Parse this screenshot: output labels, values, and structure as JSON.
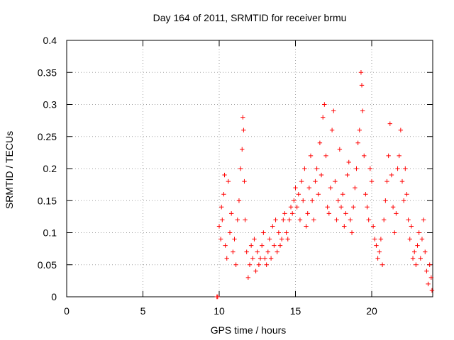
{
  "chart_data": {
    "type": "scatter",
    "title": "Day 164 of 2011, SRMTID for receiver brmu",
    "xlabel": "GPS time / hours",
    "ylabel": "SRMTID / TECUs",
    "xlim": [
      0,
      24
    ],
    "ylim": [
      0,
      0.4
    ],
    "x_ticks": [
      0,
      5,
      10,
      15,
      20
    ],
    "x_tick_labels": [
      "0",
      "5",
      "10",
      "15",
      "20"
    ],
    "y_ticks": [
      0,
      0.05,
      0.1,
      0.15,
      0.2,
      0.25,
      0.3,
      0.35,
      0.4
    ],
    "y_tick_labels": [
      "0",
      "0.05",
      "0.1",
      "0.15",
      "0.2",
      "0.25",
      "0.3",
      "0.35",
      "0.4"
    ],
    "grid": true,
    "marker": "+",
    "color": "#ff0000",
    "series": [
      {
        "name": "SRMTID",
        "points": [
          [
            9.85,
            0.0
          ],
          [
            9.9,
            0.0
          ],
          [
            10.0,
            0.11
          ],
          [
            10.1,
            0.09
          ],
          [
            10.15,
            0.14
          ],
          [
            10.2,
            0.12
          ],
          [
            10.3,
            0.16
          ],
          [
            10.35,
            0.19
          ],
          [
            10.4,
            0.08
          ],
          [
            10.5,
            0.06
          ],
          [
            10.6,
            0.18
          ],
          [
            10.7,
            0.1
          ],
          [
            10.8,
            0.13
          ],
          [
            10.9,
            0.07
          ],
          [
            11.0,
            0.09
          ],
          [
            11.1,
            0.05
          ],
          [
            11.2,
            0.12
          ],
          [
            11.3,
            0.15
          ],
          [
            11.4,
            0.2
          ],
          [
            11.5,
            0.23
          ],
          [
            11.55,
            0.28
          ],
          [
            11.6,
            0.26
          ],
          [
            11.65,
            0.18
          ],
          [
            11.7,
            0.12
          ],
          [
            11.8,
            0.07
          ],
          [
            11.9,
            0.03
          ],
          [
            12.0,
            0.05
          ],
          [
            12.1,
            0.08
          ],
          [
            12.2,
            0.06
          ],
          [
            12.3,
            0.09
          ],
          [
            12.4,
            0.04
          ],
          [
            12.5,
            0.07
          ],
          [
            12.6,
            0.05
          ],
          [
            12.7,
            0.06
          ],
          [
            12.8,
            0.08
          ],
          [
            12.9,
            0.1
          ],
          [
            13.0,
            0.06
          ],
          [
            13.1,
            0.05
          ],
          [
            13.2,
            0.07
          ],
          [
            13.3,
            0.09
          ],
          [
            13.4,
            0.06
          ],
          [
            13.5,
            0.11
          ],
          [
            13.6,
            0.08
          ],
          [
            13.7,
            0.12
          ],
          [
            13.8,
            0.07
          ],
          [
            13.9,
            0.1
          ],
          [
            14.0,
            0.08
          ],
          [
            14.1,
            0.09
          ],
          [
            14.2,
            0.12
          ],
          [
            14.3,
            0.13
          ],
          [
            14.4,
            0.1
          ],
          [
            14.5,
            0.09
          ],
          [
            14.6,
            0.12
          ],
          [
            14.7,
            0.14
          ],
          [
            14.8,
            0.13
          ],
          [
            14.9,
            0.15
          ],
          [
            15.0,
            0.17
          ],
          [
            15.1,
            0.14
          ],
          [
            15.2,
            0.16
          ],
          [
            15.3,
            0.12
          ],
          [
            15.4,
            0.18
          ],
          [
            15.5,
            0.15
          ],
          [
            15.6,
            0.2
          ],
          [
            15.7,
            0.11
          ],
          [
            15.8,
            0.13
          ],
          [
            15.9,
            0.17
          ],
          [
            16.0,
            0.22
          ],
          [
            16.1,
            0.15
          ],
          [
            16.2,
            0.12
          ],
          [
            16.3,
            0.18
          ],
          [
            16.4,
            0.2
          ],
          [
            16.5,
            0.16
          ],
          [
            16.6,
            0.24
          ],
          [
            16.7,
            0.19
          ],
          [
            16.8,
            0.28
          ],
          [
            16.9,
            0.3
          ],
          [
            17.0,
            0.22
          ],
          [
            17.1,
            0.14
          ],
          [
            17.2,
            0.13
          ],
          [
            17.3,
            0.17
          ],
          [
            17.4,
            0.26
          ],
          [
            17.5,
            0.29
          ],
          [
            17.6,
            0.18
          ],
          [
            17.7,
            0.12
          ],
          [
            17.8,
            0.15
          ],
          [
            17.9,
            0.23
          ],
          [
            18.0,
            0.14
          ],
          [
            18.1,
            0.16
          ],
          [
            18.2,
            0.11
          ],
          [
            18.3,
            0.13
          ],
          [
            18.4,
            0.19
          ],
          [
            18.5,
            0.21
          ],
          [
            18.6,
            0.12
          ],
          [
            18.7,
            0.1
          ],
          [
            18.8,
            0.14
          ],
          [
            18.9,
            0.17
          ],
          [
            19.0,
            0.2
          ],
          [
            19.1,
            0.24
          ],
          [
            19.2,
            0.26
          ],
          [
            19.3,
            0.35
          ],
          [
            19.35,
            0.33
          ],
          [
            19.4,
            0.29
          ],
          [
            19.5,
            0.22
          ],
          [
            19.6,
            0.16
          ],
          [
            19.7,
            0.14
          ],
          [
            19.8,
            0.12
          ],
          [
            19.9,
            0.2
          ],
          [
            20.0,
            0.18
          ],
          [
            20.1,
            0.11
          ],
          [
            20.2,
            0.09
          ],
          [
            20.3,
            0.08
          ],
          [
            20.4,
            0.06
          ],
          [
            20.5,
            0.07
          ],
          [
            20.6,
            0.09
          ],
          [
            20.7,
            0.05
          ],
          [
            20.8,
            0.12
          ],
          [
            20.9,
            0.15
          ],
          [
            21.0,
            0.18
          ],
          [
            21.1,
            0.22
          ],
          [
            21.2,
            0.27
          ],
          [
            21.3,
            0.19
          ],
          [
            21.4,
            0.14
          ],
          [
            21.5,
            0.1
          ],
          [
            21.6,
            0.13
          ],
          [
            21.7,
            0.2
          ],
          [
            21.8,
            0.22
          ],
          [
            21.9,
            0.26
          ],
          [
            22.0,
            0.18
          ],
          [
            22.1,
            0.15
          ],
          [
            22.2,
            0.2
          ],
          [
            22.3,
            0.16
          ],
          [
            22.4,
            0.12
          ],
          [
            22.5,
            0.09
          ],
          [
            22.6,
            0.11
          ],
          [
            22.7,
            0.06
          ],
          [
            22.8,
            0.07
          ],
          [
            22.9,
            0.05
          ],
          [
            23.0,
            0.08
          ],
          [
            23.1,
            0.1
          ],
          [
            23.2,
            0.06
          ],
          [
            23.3,
            0.09
          ],
          [
            23.4,
            0.12
          ],
          [
            23.5,
            0.07
          ],
          [
            23.6,
            0.04
          ],
          [
            23.7,
            0.02
          ],
          [
            23.8,
            0.05
          ],
          [
            23.9,
            0.03
          ],
          [
            23.95,
            0.01
          ]
        ]
      }
    ]
  }
}
